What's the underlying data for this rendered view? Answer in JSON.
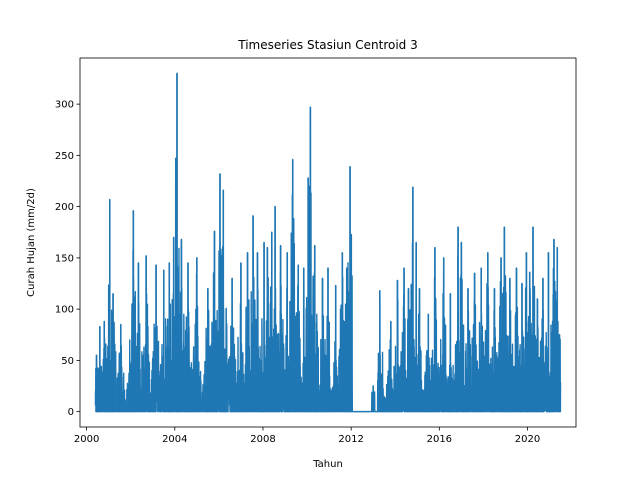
{
  "chart_data": {
    "type": "line",
    "title": "Timeseries Stasiun Centroid 3",
    "xlabel": "Tahun",
    "ylabel": "Curah Hujan (mm/2d)",
    "xlim": [
      1999.7,
      2022.2
    ],
    "ylim": [
      -15,
      345
    ],
    "x_ticks": [
      2000,
      2004,
      2008,
      2012,
      2016,
      2020
    ],
    "x_tick_labels": [
      "2000",
      "2004",
      "2008",
      "2012",
      "2016",
      "2020"
    ],
    "y_ticks": [
      0,
      50,
      100,
      150,
      200,
      250,
      300
    ],
    "y_tick_labels": [
      "0",
      "50",
      "100",
      "150",
      "200",
      "250",
      "300"
    ],
    "grid": false,
    "legend": "none",
    "series_color": "#1f77b4",
    "data_range": [
      2000.4,
      2021.5
    ],
    "gap": [
      2012.05,
      2013.2
    ],
    "peaks": [
      {
        "x": 2000.45,
        "y": 55
      },
      {
        "x": 2000.6,
        "y": 83
      },
      {
        "x": 2000.8,
        "y": 88
      },
      {
        "x": 2001.05,
        "y": 207
      },
      {
        "x": 2001.2,
        "y": 115
      },
      {
        "x": 2001.55,
        "y": 85
      },
      {
        "x": 2002.12,
        "y": 196
      },
      {
        "x": 2002.35,
        "y": 145
      },
      {
        "x": 2002.7,
        "y": 152
      },
      {
        "x": 2003.15,
        "y": 143
      },
      {
        "x": 2003.5,
        "y": 138
      },
      {
        "x": 2003.75,
        "y": 145
      },
      {
        "x": 2003.95,
        "y": 170
      },
      {
        "x": 2004.1,
        "y": 330
      },
      {
        "x": 2004.3,
        "y": 168
      },
      {
        "x": 2004.6,
        "y": 145
      },
      {
        "x": 2005.0,
        "y": 150
      },
      {
        "x": 2005.5,
        "y": 120
      },
      {
        "x": 2005.8,
        "y": 176
      },
      {
        "x": 2006.05,
        "y": 232
      },
      {
        "x": 2006.2,
        "y": 216
      },
      {
        "x": 2006.6,
        "y": 130
      },
      {
        "x": 2007.0,
        "y": 145
      },
      {
        "x": 2007.3,
        "y": 155
      },
      {
        "x": 2007.55,
        "y": 191
      },
      {
        "x": 2007.75,
        "y": 155
      },
      {
        "x": 2008.05,
        "y": 165
      },
      {
        "x": 2008.2,
        "y": 160
      },
      {
        "x": 2008.4,
        "y": 175
      },
      {
        "x": 2008.55,
        "y": 200
      },
      {
        "x": 2008.8,
        "y": 162
      },
      {
        "x": 2009.1,
        "y": 155
      },
      {
        "x": 2009.35,
        "y": 246
      },
      {
        "x": 2009.6,
        "y": 143
      },
      {
        "x": 2009.85,
        "y": 140
      },
      {
        "x": 2010.05,
        "y": 228
      },
      {
        "x": 2010.15,
        "y": 297
      },
      {
        "x": 2010.35,
        "y": 162
      },
      {
        "x": 2010.7,
        "y": 130
      },
      {
        "x": 2010.95,
        "y": 140
      },
      {
        "x": 2011.3,
        "y": 123
      },
      {
        "x": 2011.6,
        "y": 155
      },
      {
        "x": 2011.8,
        "y": 140
      },
      {
        "x": 2011.95,
        "y": 239
      },
      {
        "x": 2013.0,
        "y": 25
      },
      {
        "x": 2013.3,
        "y": 118
      },
      {
        "x": 2013.8,
        "y": 88
      },
      {
        "x": 2014.1,
        "y": 128
      },
      {
        "x": 2014.4,
        "y": 140
      },
      {
        "x": 2014.6,
        "y": 120
      },
      {
        "x": 2014.8,
        "y": 219
      },
      {
        "x": 2014.95,
        "y": 165
      },
      {
        "x": 2015.1,
        "y": 120
      },
      {
        "x": 2015.5,
        "y": 95
      },
      {
        "x": 2015.8,
        "y": 160
      },
      {
        "x": 2016.2,
        "y": 150
      },
      {
        "x": 2016.5,
        "y": 115
      },
      {
        "x": 2016.85,
        "y": 180
      },
      {
        "x": 2017.0,
        "y": 165
      },
      {
        "x": 2017.3,
        "y": 120
      },
      {
        "x": 2017.6,
        "y": 135
      },
      {
        "x": 2017.9,
        "y": 140
      },
      {
        "x": 2018.2,
        "y": 155
      },
      {
        "x": 2018.5,
        "y": 120
      },
      {
        "x": 2018.8,
        "y": 150
      },
      {
        "x": 2018.95,
        "y": 180
      },
      {
        "x": 2019.2,
        "y": 130
      },
      {
        "x": 2019.5,
        "y": 140
      },
      {
        "x": 2019.75,
        "y": 125
      },
      {
        "x": 2019.95,
        "y": 155
      },
      {
        "x": 2020.1,
        "y": 136
      },
      {
        "x": 2020.25,
        "y": 180
      },
      {
        "x": 2020.45,
        "y": 110
      },
      {
        "x": 2020.7,
        "y": 130
      },
      {
        "x": 2020.95,
        "y": 155
      },
      {
        "x": 2021.2,
        "y": 168
      },
      {
        "x": 2021.35,
        "y": 160
      },
      {
        "x": 2021.45,
        "y": 75
      }
    ]
  }
}
